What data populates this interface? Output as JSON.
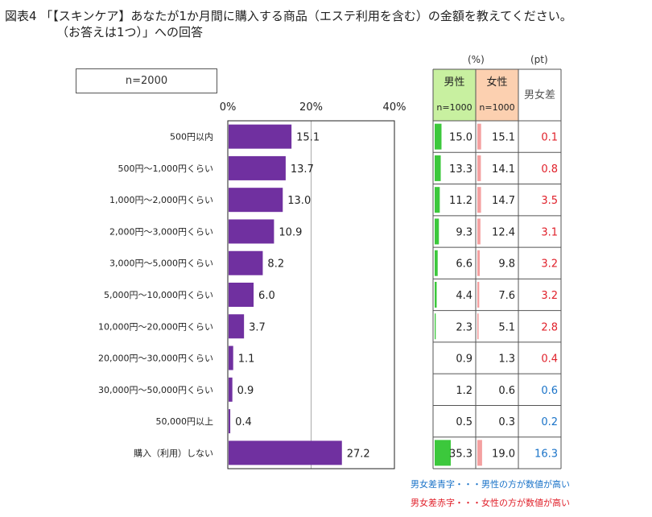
{
  "title": {
    "line1": "図表4 「【スキンケア】あなたが1か月間に購入する商品（エステ利用を含む）の金額を教えてください。",
    "line2": "（お答えは1つ）」への回答"
  },
  "n_label": "n=2000",
  "units": {
    "percent": "(%)",
    "pt": "(pt)"
  },
  "table_header": {
    "male": "男性",
    "male_n": "n=1000",
    "female": "女性",
    "female_n": "n=1000",
    "diff": "男女差"
  },
  "colors": {
    "bar": "#7030a0",
    "male": "#3cc83c",
    "female": "#f4a0a0",
    "blue": "#1a73c8",
    "red": "#e0202a",
    "male_header": "#c8f0a0",
    "female_header": "#fcd0b0"
  },
  "legend": {
    "blue": "男女差青字・・・男性の方が数値が高い",
    "red": "男女差赤字・・・女性の方が数値が高い"
  },
  "chart_data": {
    "type": "bar",
    "orientation": "horizontal",
    "x_ticks": [
      "0%",
      "20%",
      "40%"
    ],
    "xlim": [
      0,
      40
    ],
    "categories": [
      "500円以内",
      "500円～1,000円くらい",
      "1,000円～2,000円くらい",
      "2,000円～3,000円くらい",
      "3,000円～5,000円くらい",
      "5,000円～10,000円くらい",
      "10,000円～20,000円くらい",
      "20,000円～30,000円くらい",
      "30,000円～50,000円くらい",
      "50,000円以上",
      "購入（利用）しない"
    ],
    "values": [
      "15.1",
      "13.7",
      "13.0",
      "10.9",
      "8.2",
      "6.0",
      "3.7",
      "1.1",
      "0.9",
      "0.4",
      "27.2"
    ],
    "male": [
      "15.0",
      "13.3",
      "11.2",
      "9.3",
      "6.6",
      "4.4",
      "2.3",
      "0.9",
      "1.2",
      "0.5",
      "35.3"
    ],
    "female": [
      "15.1",
      "14.1",
      "14.7",
      "12.4",
      "9.8",
      "7.6",
      "5.1",
      "1.3",
      "0.6",
      "0.3",
      "19.0"
    ],
    "diff": [
      "0.1",
      "0.8",
      "3.5",
      "3.1",
      "3.2",
      "3.2",
      "2.8",
      "0.4",
      "0.6",
      "0.2",
      "16.3"
    ],
    "diff_color": [
      "red",
      "red",
      "red",
      "red",
      "red",
      "red",
      "red",
      "red",
      "blue",
      "blue",
      "blue"
    ]
  }
}
